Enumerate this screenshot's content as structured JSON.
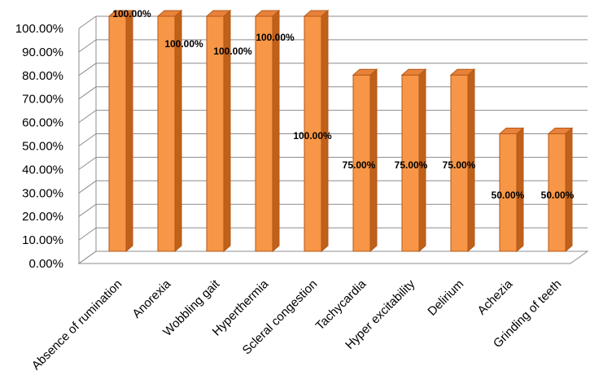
{
  "chart_data": {
    "type": "bar",
    "categories": [
      "Absence of rumination",
      "Anorexia",
      "Wobbling gait",
      "Hyperthermia",
      "Scleral congestion",
      "Tachycardia",
      "Hyper excitability",
      "Delirium",
      "Achezia",
      "Grinding of teeth"
    ],
    "values": [
      100,
      100,
      100,
      100,
      100,
      75,
      75,
      75,
      50,
      50
    ],
    "data_labels": [
      "100.00%",
      "100.00%",
      "100.00%",
      "100.00%",
      "100.00%",
      "75.00%",
      "75.00%",
      "75.00%",
      "50.00%",
      "50.00%"
    ],
    "y_tick_labels": [
      "0.00%",
      "10.00%",
      "20.00%",
      "30.00%",
      "40.00%",
      "50.00%",
      "60.00%",
      "70.00%",
      "80.00%",
      "90.00%",
      "100.00%"
    ],
    "ylim": [
      0,
      100
    ],
    "grid": true,
    "legend": "none",
    "colors": {
      "bar_front": "#F79646",
      "bar_side": "#C0611A",
      "bar_top": "#E8823A",
      "bar_outline": "#B3581A",
      "grid": "#8c8c8c"
    }
  }
}
